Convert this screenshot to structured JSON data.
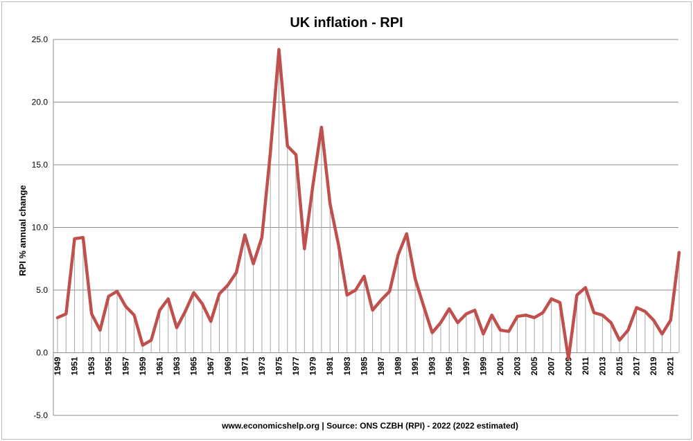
{
  "chart_data": {
    "type": "line",
    "title": "UK inflation - RPI",
    "xlabel": "",
    "ylabel": "RPI % annual change",
    "source_note": "www.economicshelp.org | Source: ONS CZBH (RPI) - 2022 (2022 estimated)",
    "ylim": [
      -5.0,
      25.0
    ],
    "yticks": [
      "-5.0",
      "0.0",
      "5.0",
      "10.0",
      "15.0",
      "20.0",
      "25.0"
    ],
    "xtick_labels": [
      "1949",
      "1951",
      "1953",
      "1955",
      "1957",
      "1959",
      "1961",
      "1963",
      "1965",
      "1967",
      "1969",
      "1971",
      "1973",
      "1975",
      "1977",
      "1979",
      "1981",
      "1983",
      "1985",
      "1987",
      "1989",
      "1991",
      "1993",
      "1995",
      "1997",
      "1999",
      "2001",
      "2003",
      "2005",
      "2007",
      "2009",
      "2011",
      "2013",
      "2015",
      "2017",
      "2019",
      "2021"
    ],
    "grid": true,
    "drop_lines": true,
    "line_color": "#c0504d",
    "x": [
      1949,
      1950,
      1951,
      1952,
      1953,
      1954,
      1955,
      1956,
      1957,
      1958,
      1959,
      1960,
      1961,
      1962,
      1963,
      1964,
      1965,
      1966,
      1967,
      1968,
      1969,
      1970,
      1971,
      1972,
      1973,
      1974,
      1975,
      1976,
      1977,
      1978,
      1979,
      1980,
      1981,
      1982,
      1983,
      1984,
      1985,
      1986,
      1987,
      1988,
      1989,
      1990,
      1991,
      1992,
      1993,
      1994,
      1995,
      1996,
      1997,
      1998,
      1999,
      2000,
      2001,
      2002,
      2003,
      2004,
      2005,
      2006,
      2007,
      2008,
      2009,
      2010,
      2011,
      2012,
      2013,
      2014,
      2015,
      2016,
      2017,
      2018,
      2019,
      2020,
      2021,
      2022
    ],
    "series": [
      {
        "values": [
          2.8,
          3.1,
          9.1,
          9.2,
          3.1,
          1.8,
          4.5,
          4.9,
          3.7,
          3.0,
          0.6,
          1.0,
          3.4,
          4.3,
          2.0,
          3.3,
          4.8,
          3.9,
          2.5,
          4.7,
          5.4,
          6.4,
          9.4,
          7.1,
          9.2,
          16.0,
          24.2,
          16.5,
          15.8,
          8.3,
          13.4,
          18.0,
          11.9,
          8.6,
          4.6,
          5.0,
          6.1,
          3.4,
          4.2,
          4.9,
          7.8,
          9.5,
          5.9,
          3.7,
          1.6,
          2.4,
          3.5,
          2.4,
          3.1,
          3.4,
          1.5,
          3.0,
          1.8,
          1.7,
          2.9,
          3.0,
          2.8,
          3.2,
          4.3,
          4.0,
          -0.5,
          4.6,
          5.2,
          3.2,
          3.0,
          2.4,
          1.0,
          1.8,
          3.6,
          3.3,
          2.6,
          1.5,
          2.6,
          8.0
        ]
      }
    ]
  }
}
